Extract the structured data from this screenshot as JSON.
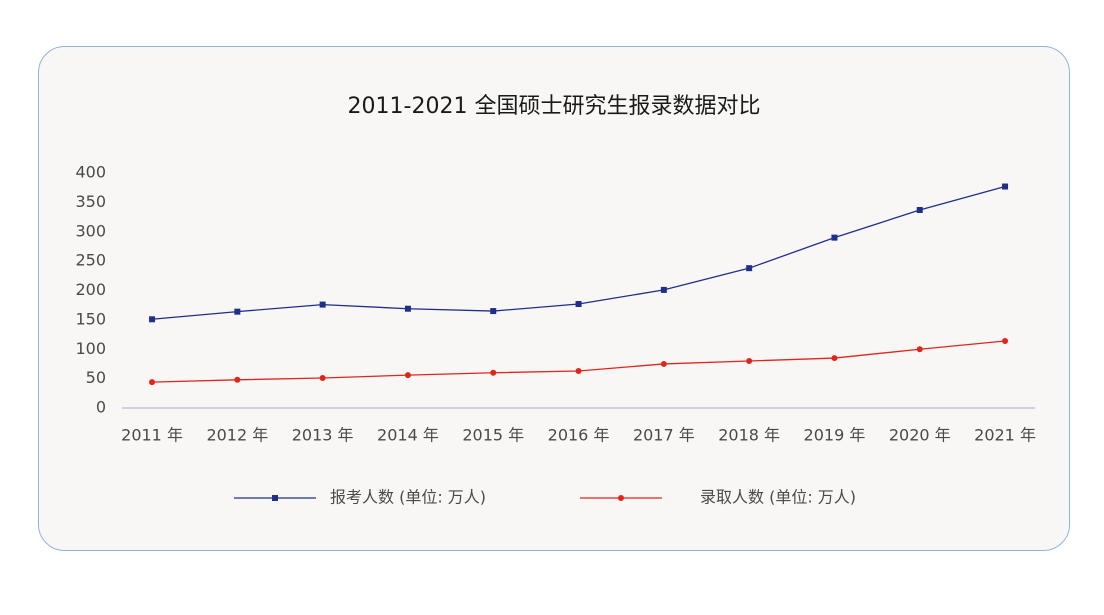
{
  "chart_data": {
    "type": "line",
    "title": "2011-2021 全国硕士研究生报录数据对比",
    "categories": [
      "2011 年",
      "2012 年",
      "2013 年",
      "2014 年",
      "2015 年",
      "2016 年",
      "2017 年",
      "2018 年",
      "2019 年",
      "2020 年",
      "2021 年"
    ],
    "series": [
      {
        "name": "报考人数 (单位: 万人)",
        "color": "#1f2f8a",
        "marker": "square",
        "values": [
          151,
          164,
          176,
          169,
          165,
          177,
          201,
          238,
          290,
          337,
          377
        ]
      },
      {
        "name": "录取人数 (单位: 万人)",
        "color": "#e0261a",
        "marker": "circle",
        "values": [
          44,
          48,
          51,
          56,
          60,
          63,
          75,
          80,
          85,
          100,
          114
        ]
      }
    ],
    "ylim": [
      0,
      400
    ],
    "yticks": [
      0,
      50,
      100,
      150,
      200,
      250,
      300,
      350,
      400
    ],
    "grid": false,
    "legend": "bottom"
  }
}
